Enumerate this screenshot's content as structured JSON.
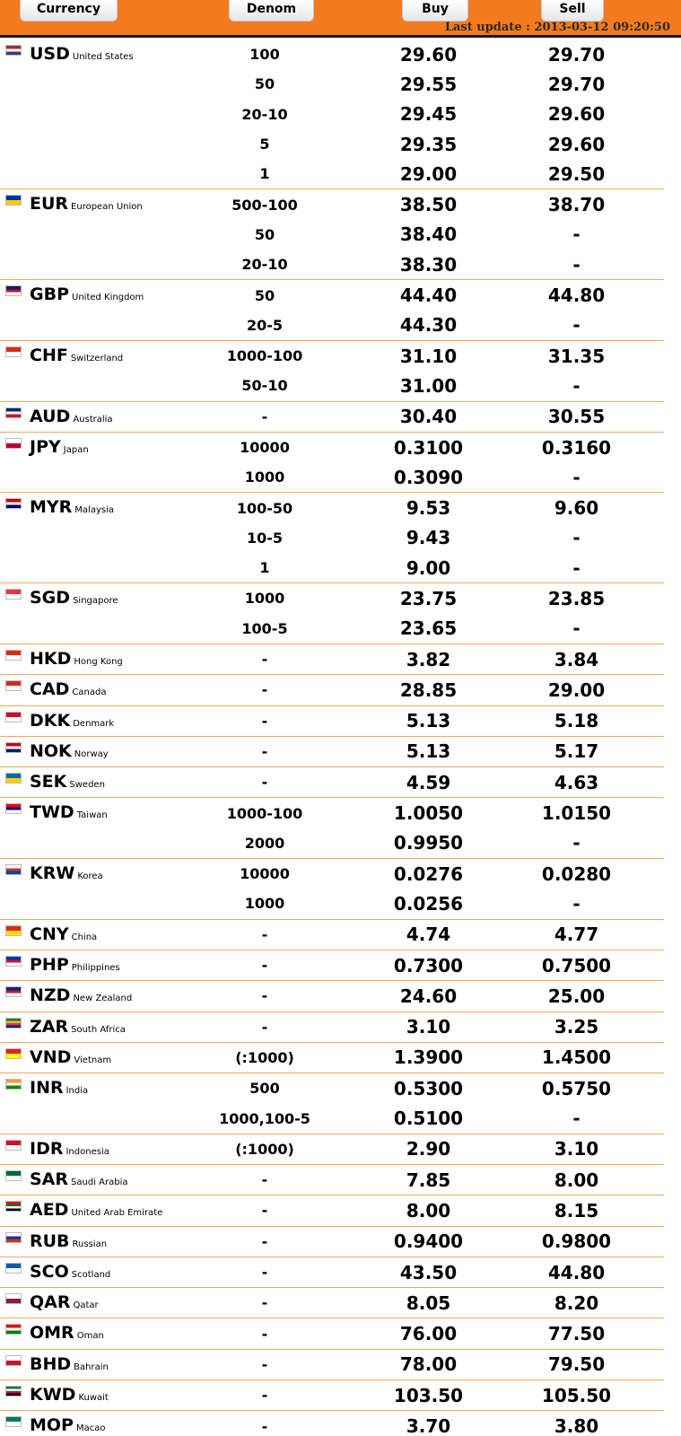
{
  "header": {
    "currency_label": "Currency",
    "denom_label": "Denom",
    "buy_label": "Buy",
    "sell_label": "Sell",
    "last_update": "Last update : 2013-03-12 09:20:50"
  },
  "rates": [
    {
      "code": "USD",
      "name": "United States",
      "flag": "us-flag-icon",
      "colors": [
        "#b22234",
        "#ffffff",
        "#3c3b6e"
      ],
      "rows": [
        {
          "denom": "100",
          "buy": "29.60",
          "sell": "29.70"
        },
        {
          "denom": "50",
          "buy": "29.55",
          "sell": "29.70"
        },
        {
          "denom": "20-10",
          "buy": "29.45",
          "sell": "29.60"
        },
        {
          "denom": "5",
          "buy": "29.35",
          "sell": "29.60"
        },
        {
          "denom": "1",
          "buy": "29.00",
          "sell": "29.50"
        }
      ]
    },
    {
      "code": "EUR",
      "name": "European Union",
      "flag": "eu-flag-icon",
      "colors": [
        "#003399",
        "#ffcc00"
      ],
      "rows": [
        {
          "denom": "500-100",
          "buy": "38.50",
          "sell": "38.70"
        },
        {
          "denom": "50",
          "buy": "38.40",
          "sell": "-"
        },
        {
          "denom": "20-10",
          "buy": "38.30",
          "sell": "-"
        }
      ]
    },
    {
      "code": "GBP",
      "name": "United Kingdom",
      "flag": "uk-flag-icon",
      "colors": [
        "#012169",
        "#c8102e",
        "#ffffff"
      ],
      "rows": [
        {
          "denom": "50",
          "buy": "44.40",
          "sell": "44.80"
        },
        {
          "denom": "20-5",
          "buy": "44.30",
          "sell": "-"
        }
      ]
    },
    {
      "code": "CHF",
      "name": "Switzerland",
      "flag": "ch-flag-icon",
      "colors": [
        "#da291c",
        "#ffffff"
      ],
      "rows": [
        {
          "denom": "1000-100",
          "buy": "31.10",
          "sell": "31.35"
        },
        {
          "denom": "50-10",
          "buy": "31.00",
          "sell": "-"
        }
      ]
    },
    {
      "code": "AUD",
      "name": "Australia",
      "flag": "au-flag-icon",
      "colors": [
        "#00247d",
        "#ffffff",
        "#cf142b"
      ],
      "rows": [
        {
          "denom": "-",
          "buy": "30.40",
          "sell": "30.55"
        }
      ]
    },
    {
      "code": "JPY",
      "name": "Japan",
      "flag": "jp-flag-icon",
      "colors": [
        "#ffffff",
        "#bc002d"
      ],
      "rows": [
        {
          "denom": "10000",
          "buy": "0.3100",
          "sell": "0.3160"
        },
        {
          "denom": "1000",
          "buy": "0.3090",
          "sell": "-"
        }
      ]
    },
    {
      "code": "MYR",
      "name": "Malaysia",
      "flag": "my-flag-icon",
      "colors": [
        "#cc0001",
        "#ffffff",
        "#010066"
      ],
      "rows": [
        {
          "denom": "100-50",
          "buy": "9.53",
          "sell": "9.60"
        },
        {
          "denom": "10-5",
          "buy": "9.43",
          "sell": "-"
        },
        {
          "denom": "1",
          "buy": "9.00",
          "sell": "-"
        }
      ]
    },
    {
      "code": "SGD",
      "name": "Singapore",
      "flag": "sg-flag-icon",
      "colors": [
        "#ef3340",
        "#ffffff"
      ],
      "rows": [
        {
          "denom": "1000",
          "buy": "23.75",
          "sell": "23.85"
        },
        {
          "denom": "100-5",
          "buy": "23.65",
          "sell": "-"
        }
      ]
    },
    {
      "code": "HKD",
      "name": "Hong Kong",
      "flag": "hk-flag-icon",
      "colors": [
        "#de2910",
        "#ffffff"
      ],
      "rows": [
        {
          "denom": "-",
          "buy": "3.82",
          "sell": "3.84"
        }
      ]
    },
    {
      "code": "CAD",
      "name": "Canada",
      "flag": "ca-flag-icon",
      "colors": [
        "#d52b1e",
        "#ffffff"
      ],
      "rows": [
        {
          "denom": "-",
          "buy": "28.85",
          "sell": "29.00"
        }
      ]
    },
    {
      "code": "DKK",
      "name": "Denmark",
      "flag": "dk-flag-icon",
      "colors": [
        "#c8102e",
        "#ffffff"
      ],
      "rows": [
        {
          "denom": "-",
          "buy": "5.13",
          "sell": "5.18"
        }
      ]
    },
    {
      "code": "NOK",
      "name": "Norway",
      "flag": "no-flag-icon",
      "colors": [
        "#ba0c2f",
        "#ffffff",
        "#00205b"
      ],
      "rows": [
        {
          "denom": "-",
          "buy": "5.13",
          "sell": "5.17"
        }
      ]
    },
    {
      "code": "SEK",
      "name": "Sweden",
      "flag": "se-flag-icon",
      "colors": [
        "#006aa7",
        "#fecc00"
      ],
      "rows": [
        {
          "denom": "-",
          "buy": "4.59",
          "sell": "4.63"
        }
      ]
    },
    {
      "code": "TWD",
      "name": "Taiwan",
      "flag": "tw-flag-icon",
      "colors": [
        "#fe0000",
        "#000095",
        "#ffffff"
      ],
      "rows": [
        {
          "denom": "1000-100",
          "buy": "1.0050",
          "sell": "1.0150"
        },
        {
          "denom": "2000",
          "buy": "0.9950",
          "sell": "-"
        }
      ]
    },
    {
      "code": "KRW",
      "name": "Korea",
      "flag": "kr-flag-icon",
      "colors": [
        "#ffffff",
        "#cd2e3a",
        "#0047a0"
      ],
      "rows": [
        {
          "denom": "10000",
          "buy": "0.0276",
          "sell": "0.0280"
        },
        {
          "denom": "1000",
          "buy": "0.0256",
          "sell": "-"
        }
      ]
    },
    {
      "code": "CNY",
      "name": "China",
      "flag": "cn-flag-icon",
      "colors": [
        "#de2910",
        "#ffde00"
      ],
      "rows": [
        {
          "denom": "-",
          "buy": "4.74",
          "sell": "4.77"
        }
      ]
    },
    {
      "code": "PHP",
      "name": "Philippines",
      "flag": "ph-flag-icon",
      "colors": [
        "#0038a8",
        "#ce1126",
        "#ffffff"
      ],
      "rows": [
        {
          "denom": "-",
          "buy": "0.7300",
          "sell": "0.7500"
        }
      ]
    },
    {
      "code": "NZD",
      "name": "New Zealand",
      "flag": "nz-flag-icon",
      "colors": [
        "#00247d",
        "#cc142b",
        "#ffffff"
      ],
      "rows": [
        {
          "denom": "-",
          "buy": "24.60",
          "sell": "25.00"
        }
      ]
    },
    {
      "code": "ZAR",
      "name": "South Africa",
      "flag": "za-flag-icon",
      "colors": [
        "#007a4d",
        "#ffb612",
        "#de3831",
        "#002395"
      ],
      "rows": [
        {
          "denom": "-",
          "buy": "3.10",
          "sell": "3.25"
        }
      ]
    },
    {
      "code": "VND",
      "name": "Vietnam",
      "flag": "vn-flag-icon",
      "colors": [
        "#da251d",
        "#ffff00"
      ],
      "rows": [
        {
          "denom": "(:1000)",
          "buy": "1.3900",
          "sell": "1.4500"
        }
      ]
    },
    {
      "code": "INR",
      "name": "India",
      "flag": "in-flag-icon",
      "colors": [
        "#ff9933",
        "#ffffff",
        "#138808"
      ],
      "rows": [
        {
          "denom": "500",
          "buy": "0.5300",
          "sell": "0.5750"
        },
        {
          "denom": "1000,100-5",
          "buy": "0.5100",
          "sell": "-"
        }
      ]
    },
    {
      "code": "IDR",
      "name": "Indonesia",
      "flag": "id-flag-icon",
      "colors": [
        "#ce1126",
        "#ffffff"
      ],
      "rows": [
        {
          "denom": "(:1000)",
          "buy": "2.90",
          "sell": "3.10"
        }
      ]
    },
    {
      "code": "SAR",
      "name": "Saudi Arabia",
      "flag": "sa-flag-icon",
      "colors": [
        "#006c35",
        "#ffffff"
      ],
      "rows": [
        {
          "denom": "-",
          "buy": "7.85",
          "sell": "8.00"
        }
      ]
    },
    {
      "code": "AED",
      "name": "United Arab Emirate",
      "flag": "ae-flag-icon",
      "colors": [
        "#ff0000",
        "#00732f",
        "#ffffff",
        "#000000"
      ],
      "rows": [
        {
          "denom": "-",
          "buy": "8.00",
          "sell": "8.15"
        }
      ]
    },
    {
      "code": "RUB",
      "name": "Russian",
      "flag": "ru-flag-icon",
      "colors": [
        "#ffffff",
        "#0039a6",
        "#d52b1e"
      ],
      "rows": [
        {
          "denom": "-",
          "buy": "0.9400",
          "sell": "0.9800"
        }
      ]
    },
    {
      "code": "SCO",
      "name": "Scotland",
      "flag": "sco-flag-icon",
      "colors": [
        "#005eb8",
        "#ffffff"
      ],
      "rows": [
        {
          "denom": "-",
          "buy": "43.50",
          "sell": "44.80"
        }
      ]
    },
    {
      "code": "QAR",
      "name": "Qatar",
      "flag": "qa-flag-icon",
      "colors": [
        "#ffffff",
        "#8d1b3d"
      ],
      "rows": [
        {
          "denom": "-",
          "buy": "8.05",
          "sell": "8.20"
        }
      ]
    },
    {
      "code": "OMR",
      "name": "Oman",
      "flag": "om-flag-icon",
      "colors": [
        "#db161b",
        "#ffffff",
        "#008000"
      ],
      "rows": [
        {
          "denom": "-",
          "buy": "76.00",
          "sell": "77.50"
        }
      ]
    },
    {
      "code": "BHD",
      "name": "Bahrain",
      "flag": "bh-flag-icon",
      "colors": [
        "#ffffff",
        "#ce1126"
      ],
      "rows": [
        {
          "denom": "-",
          "buy": "78.00",
          "sell": "79.50"
        }
      ]
    },
    {
      "code": "KWD",
      "name": "Kuwait",
      "flag": "kw-flag-icon",
      "colors": [
        "#007a3d",
        "#ffffff",
        "#ce1126",
        "#000000"
      ],
      "rows": [
        {
          "denom": "-",
          "buy": "103.50",
          "sell": "105.50"
        }
      ]
    },
    {
      "code": "MOP",
      "name": "Macao",
      "flag": "mo-flag-icon",
      "colors": [
        "#00785e",
        "#ffffff"
      ],
      "rows": [
        {
          "denom": "-",
          "buy": "3.70",
          "sell": "3.80"
        }
      ]
    }
  ]
}
